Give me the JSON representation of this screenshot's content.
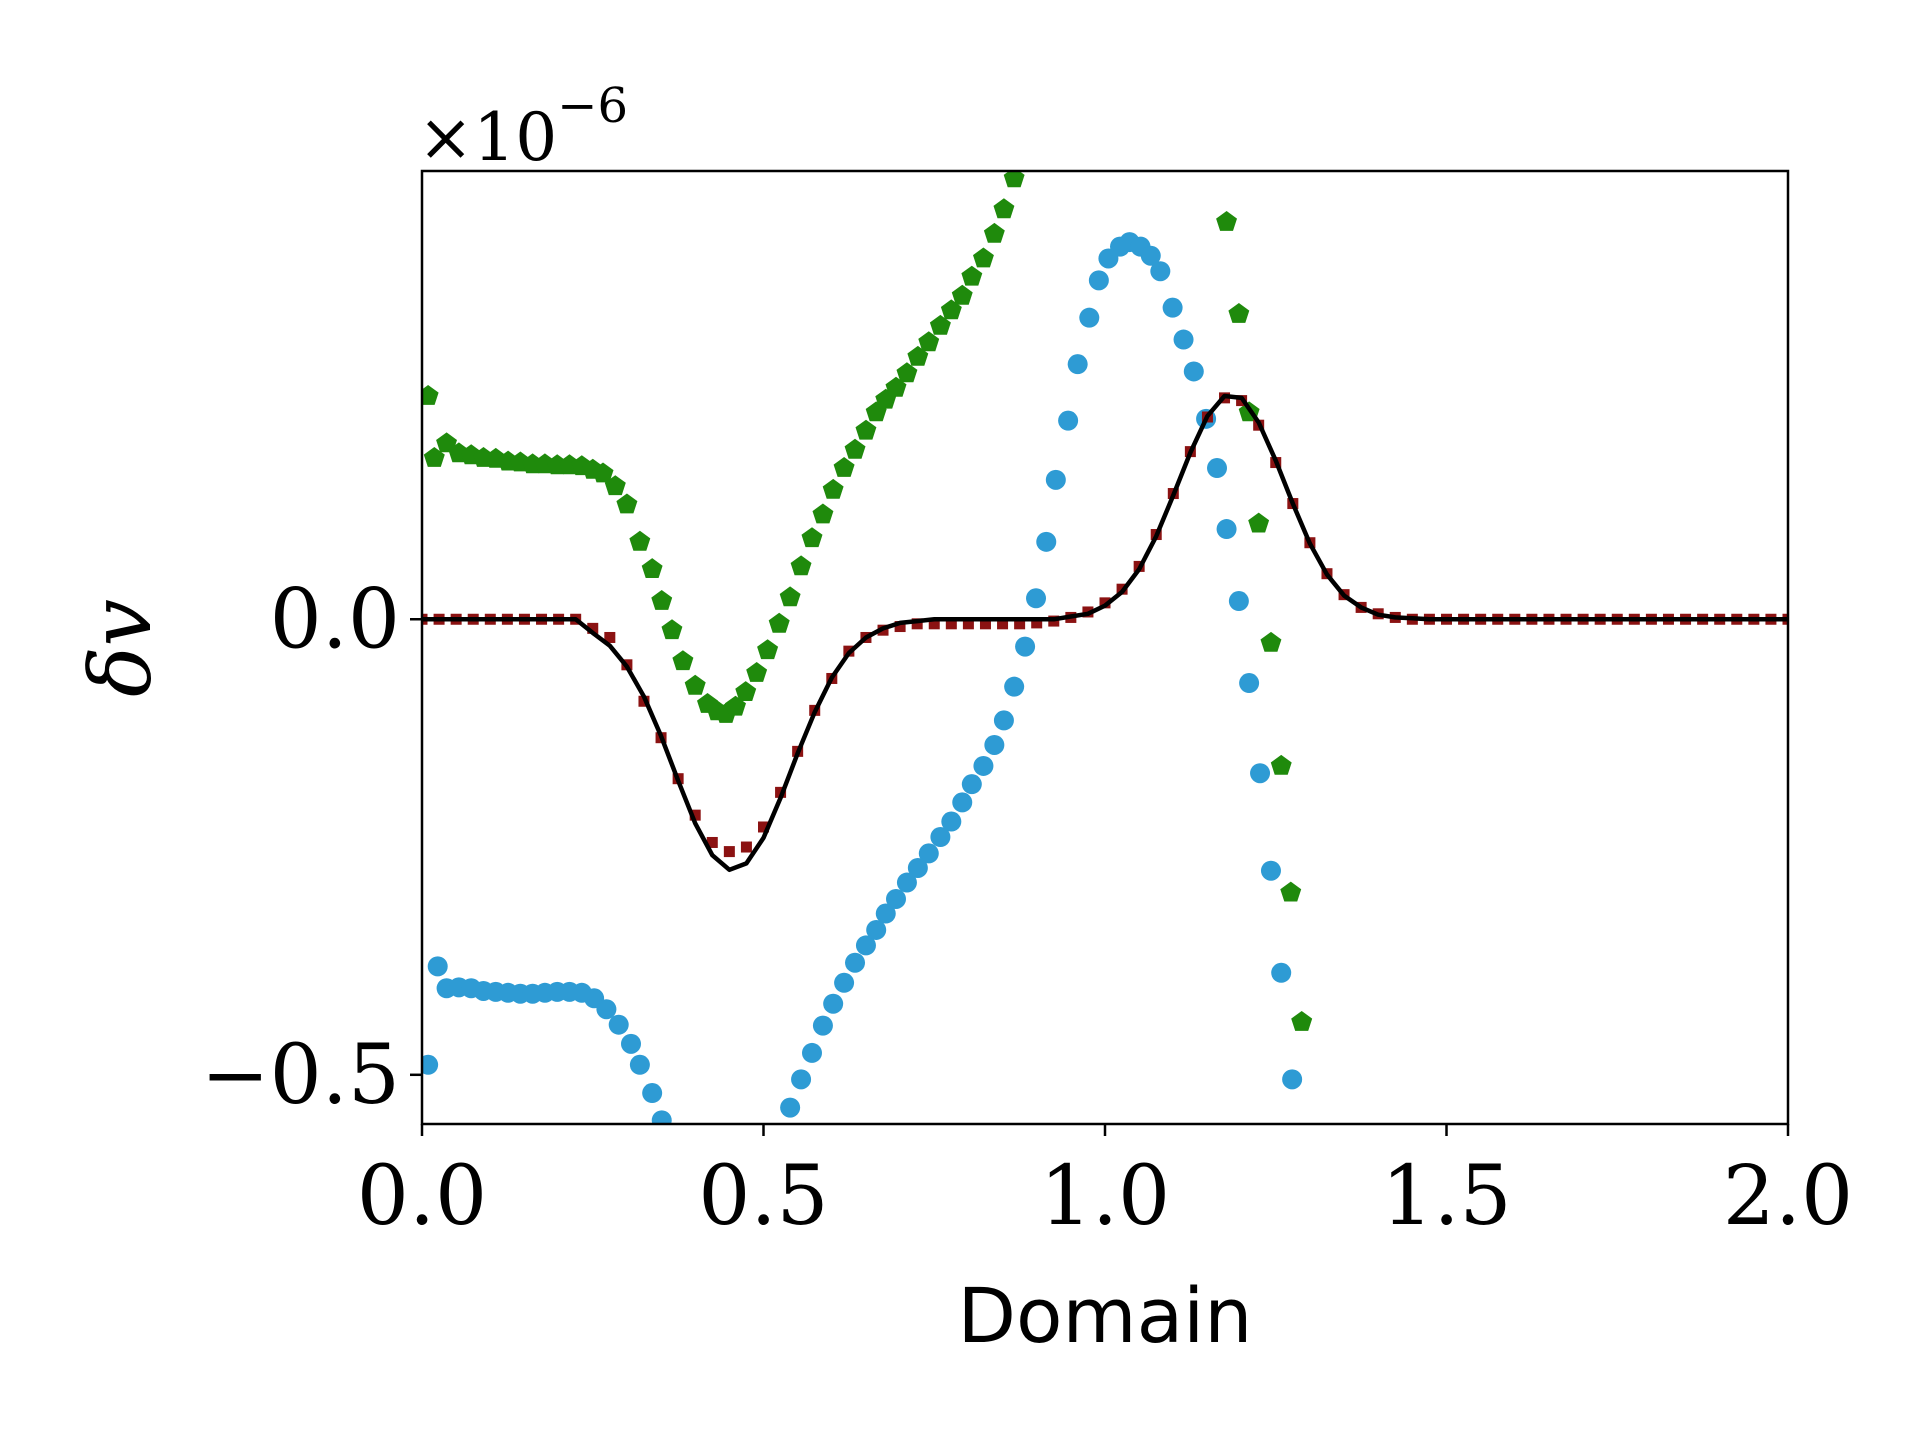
{
  "chart_data": {
    "type": "scatter",
    "xlabel": "Domain",
    "ylabel": "δv",
    "y_offset_text": {
      "base": "×10",
      "exponent": "−6"
    },
    "xlim": [
      0,
      2
    ],
    "ylim": [
      -0.554,
      0.492
    ],
    "xticks": [
      {
        "value": 0,
        "label": "0.0"
      },
      {
        "value": 0.5,
        "label": "0.5"
      },
      {
        "value": 1,
        "label": "1.0"
      },
      {
        "value": 1.5,
        "label": "1.5"
      },
      {
        "value": 2,
        "label": "2.0"
      }
    ],
    "yticks": [
      {
        "value": -0.5,
        "label": "−0.5"
      },
      {
        "value": 0,
        "label": "0.0"
      }
    ],
    "grid": false,
    "series": [
      {
        "type": "scatter",
        "marker": "pentagon",
        "color": "#1f8a0c",
        "x": [
          0.009,
          0.018,
          0.036,
          0.054,
          0.072,
          0.09,
          0.108,
          0.126,
          0.144,
          0.162,
          0.18,
          0.198,
          0.216,
          0.234,
          0.25,
          0.265,
          0.283,
          0.3,
          0.319,
          0.337,
          0.351,
          0.366,
          0.382,
          0.4,
          0.418,
          0.432,
          0.445,
          0.459,
          0.474,
          0.49,
          0.506,
          0.523,
          0.539,
          0.555,
          0.571,
          0.587,
          0.602,
          0.618,
          0.634,
          0.65,
          0.665,
          0.679,
          0.694,
          0.71,
          0.726,
          0.742,
          0.759,
          0.775,
          0.791,
          0.805,
          0.822,
          0.838,
          0.852,
          0.867,
          1.178,
          1.196,
          1.211,
          1.225,
          1.243,
          1.258,
          1.272,
          1.288
        ],
        "values": [
          0.245,
          0.177,
          0.193,
          0.182,
          0.18,
          0.177,
          0.176,
          0.173,
          0.172,
          0.17,
          0.17,
          0.169,
          0.169,
          0.168,
          0.164,
          0.16,
          0.146,
          0.126,
          0.085,
          0.055,
          0.02,
          -0.012,
          -0.046,
          -0.073,
          -0.093,
          -0.101,
          -0.104,
          -0.096,
          -0.08,
          -0.059,
          -0.034,
          -0.005,
          0.024,
          0.058,
          0.089,
          0.115,
          0.142,
          0.166,
          0.186,
          0.207,
          0.227,
          0.241,
          0.254,
          0.27,
          0.288,
          0.304,
          0.322,
          0.339,
          0.355,
          0.376,
          0.396,
          0.423,
          0.45,
          0.484,
          0.436,
          0.335,
          0.227,
          0.105,
          -0.026,
          -0.161,
          -0.3,
          -0.442
        ]
      },
      {
        "type": "scatter",
        "marker": "circle",
        "color": "#2e9bd4",
        "x": [
          0.009,
          0.023,
          0.036,
          0.054,
          0.072,
          0.09,
          0.108,
          0.126,
          0.144,
          0.162,
          0.18,
          0.198,
          0.216,
          0.234,
          0.252,
          0.27,
          0.288,
          0.306,
          0.319,
          0.337,
          0.351,
          0.539,
          0.555,
          0.571,
          0.587,
          0.602,
          0.618,
          0.634,
          0.65,
          0.665,
          0.679,
          0.694,
          0.71,
          0.726,
          0.742,
          0.759,
          0.775,
          0.791,
          0.805,
          0.822,
          0.838,
          0.852,
          0.867,
          0.883,
          0.899,
          0.914,
          0.928,
          0.946,
          0.96,
          0.977,
          0.991,
          1.005,
          1.022,
          1.036,
          1.052,
          1.067,
          1.081,
          1.099,
          1.115,
          1.13,
          1.148,
          1.164,
          1.178,
          1.196,
          1.211,
          1.227,
          1.243,
          1.258,
          1.274
        ],
        "values": [
          -0.489,
          -0.381,
          -0.405,
          -0.404,
          -0.405,
          -0.408,
          -0.409,
          -0.41,
          -0.411,
          -0.411,
          -0.41,
          -0.409,
          -0.409,
          -0.41,
          -0.416,
          -0.428,
          -0.445,
          -0.466,
          -0.489,
          -0.52,
          -0.55,
          -0.536,
          -0.505,
          -0.476,
          -0.446,
          -0.422,
          -0.399,
          -0.377,
          -0.358,
          -0.341,
          -0.323,
          -0.307,
          -0.289,
          -0.273,
          -0.257,
          -0.239,
          -0.222,
          -0.201,
          -0.181,
          -0.161,
          -0.138,
          -0.111,
          -0.074,
          -0.03,
          0.023,
          0.085,
          0.153,
          0.218,
          0.28,
          0.331,
          0.372,
          0.396,
          0.409,
          0.414,
          0.409,
          0.399,
          0.382,
          0.342,
          0.307,
          0.272,
          0.22,
          0.166,
          0.099,
          0.02,
          -0.07,
          -0.169,
          -0.276,
          -0.388,
          -0.505
        ]
      },
      {
        "type": "scatter",
        "marker": "square",
        "color": "#8b1212",
        "x": [
          0,
          0.025,
          0.05,
          0.075,
          0.1,
          0.125,
          0.15,
          0.175,
          0.2,
          0.225,
          0.25,
          0.275,
          0.3,
          0.325,
          0.35,
          0.375,
          0.4,
          0.425,
          0.45,
          0.475,
          0.5,
          0.525,
          0.55,
          0.575,
          0.6,
          0.625,
          0.65,
          0.675,
          0.7,
          0.725,
          0.75,
          0.775,
          0.8,
          0.825,
          0.85,
          0.875,
          0.9,
          0.925,
          0.95,
          0.975,
          1,
          1.025,
          1.05,
          1.075,
          1.1,
          1.125,
          1.15,
          1.175,
          1.2,
          1.225,
          1.25,
          1.275,
          1.3,
          1.325,
          1.35,
          1.375,
          1.4,
          1.425,
          1.45,
          1.475,
          1.5,
          1.525,
          1.55,
          1.575,
          1.6,
          1.625,
          1.65,
          1.675,
          1.7,
          1.725,
          1.75,
          1.775,
          1.8,
          1.825,
          1.85,
          1.875,
          1.9,
          1.925,
          1.95,
          1.975,
          2
        ],
        "values": [
          0,
          0,
          0,
          0,
          0,
          0,
          0,
          0,
          0,
          0,
          -0.01,
          -0.02,
          -0.05,
          -0.09,
          -0.13,
          -0.175,
          -0.215,
          -0.245,
          -0.255,
          -0.25,
          -0.228,
          -0.19,
          -0.145,
          -0.1,
          -0.065,
          -0.035,
          -0.02,
          -0.012,
          -0.008,
          -0.005,
          -0.005,
          -0.005,
          -0.005,
          -0.005,
          -0.005,
          -0.005,
          -0.004,
          -0.002,
          0.002,
          0.008,
          0.018,
          0.033,
          0.058,
          0.093,
          0.138,
          0.184,
          0.222,
          0.243,
          0.24,
          0.213,
          0.172,
          0.127,
          0.084,
          0.05,
          0.027,
          0.013,
          0.006,
          0.002,
          0,
          0,
          0,
          0,
          0,
          0,
          0,
          0,
          0,
          0,
          0,
          0,
          0,
          0,
          0,
          0,
          0,
          0,
          0,
          0,
          0,
          0,
          0
        ]
      },
      {
        "type": "line",
        "color": "#000000",
        "x": [
          0,
          0.025,
          0.05,
          0.075,
          0.1,
          0.125,
          0.15,
          0.175,
          0.2,
          0.225,
          0.25,
          0.275,
          0.3,
          0.325,
          0.35,
          0.375,
          0.4,
          0.425,
          0.45,
          0.475,
          0.5,
          0.525,
          0.55,
          0.575,
          0.6,
          0.625,
          0.65,
          0.675,
          0.7,
          0.725,
          0.75,
          0.775,
          0.8,
          0.825,
          0.85,
          0.875,
          0.9,
          0.925,
          0.95,
          0.975,
          1,
          1.025,
          1.05,
          1.075,
          1.1,
          1.125,
          1.15,
          1.175,
          1.2,
          1.225,
          1.25,
          1.275,
          1.3,
          1.325,
          1.35,
          1.375,
          1.4,
          1.425,
          1.45,
          1.475,
          1.5,
          1.525,
          1.55,
          1.575,
          1.6,
          1.625,
          1.65,
          1.675,
          1.7,
          1.725,
          1.75,
          1.775,
          1.8,
          1.825,
          1.85,
          1.875,
          1.9,
          1.925,
          1.95,
          1.975,
          2
        ],
        "values": [
          0,
          0,
          0,
          0,
          0,
          0,
          0,
          0,
          0,
          0,
          -0.015,
          -0.029,
          -0.052,
          -0.085,
          -0.128,
          -0.177,
          -0.224,
          -0.259,
          -0.275,
          -0.268,
          -0.24,
          -0.196,
          -0.147,
          -0.102,
          -0.064,
          -0.037,
          -0.02,
          -0.01,
          -0.004,
          -0.002,
          0,
          0,
          0,
          0,
          0,
          0,
          0,
          0,
          0.003,
          0.006,
          0.015,
          0.03,
          0.055,
          0.091,
          0.136,
          0.183,
          0.223,
          0.245,
          0.243,
          0.216,
          0.174,
          0.127,
          0.083,
          0.049,
          0.026,
          0.013,
          0.005,
          0.002,
          0.001,
          0,
          0,
          0,
          0,
          0,
          0,
          0,
          0,
          0,
          0,
          0,
          0,
          0,
          0,
          0,
          0,
          0,
          0,
          0,
          0,
          0,
          0
        ]
      }
    ]
  }
}
